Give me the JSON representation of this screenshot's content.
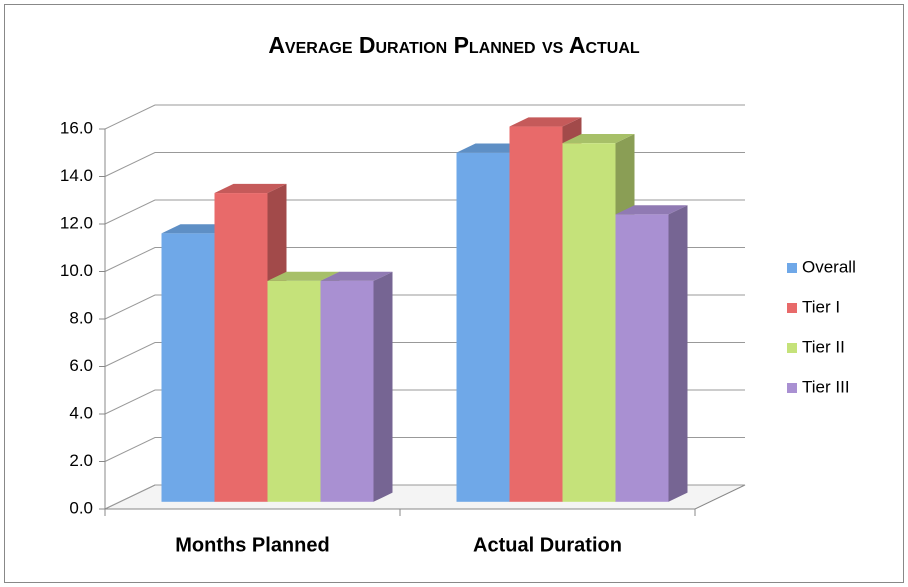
{
  "chart_data": {
    "type": "bar3d",
    "title": "Average Duration Planned vs Actual",
    "categories": [
      "Months Planned",
      "Actual Duration"
    ],
    "series": [
      {
        "name": "Overall",
        "color": "#6fa8e8",
        "values": [
          11.3,
          14.7
        ]
      },
      {
        "name": "Tier I",
        "color": "#e86a6a",
        "values": [
          13.0,
          15.8
        ]
      },
      {
        "name": "Tier II",
        "color": "#c5e27a",
        "values": [
          9.3,
          15.1
        ]
      },
      {
        "name": "Tier III",
        "color": "#a990d2",
        "values": [
          9.3,
          12.1
        ]
      }
    ],
    "ylim": [
      0,
      16
    ],
    "yticks": [
      {
        "value": 0,
        "label": "0.0"
      },
      {
        "value": 2,
        "label": "2.0"
      },
      {
        "value": 4,
        "label": "4.0"
      },
      {
        "value": 6,
        "label": "6.0"
      },
      {
        "value": 8,
        "label": "8.0"
      },
      {
        "value": 10,
        "label": "10.0"
      },
      {
        "value": 12,
        "label": "12.0"
      },
      {
        "value": 14,
        "label": "14.0"
      },
      {
        "value": 16,
        "label": "16.0"
      }
    ],
    "grid": true,
    "legend": "right"
  }
}
